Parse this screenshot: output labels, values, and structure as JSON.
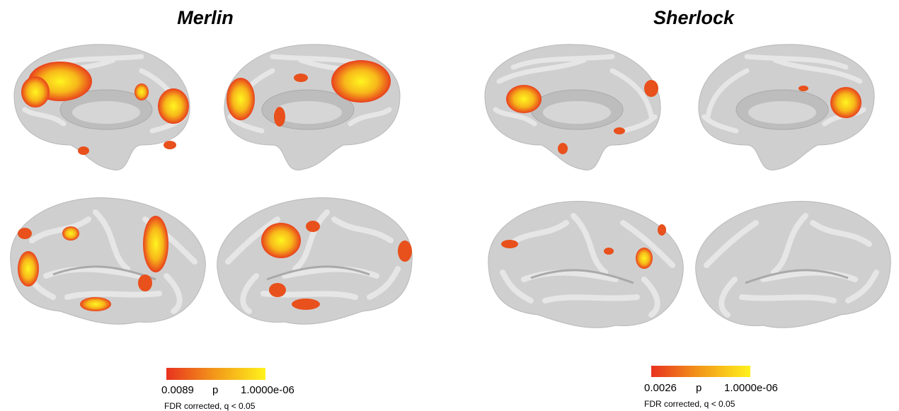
{
  "panels": [
    {
      "title": "Merlin",
      "colorbar": {
        "min_label": "0.0089",
        "mid_label": "p",
        "max_label": "1.0000e-06",
        "note": "FDR corrected, q < 0.05"
      }
    },
    {
      "title": "Sherlock",
      "colorbar": {
        "min_label": "0.0026",
        "mid_label": "p",
        "max_label": "1.0000e-06",
        "note": "FDR corrected, q < 0.05"
      }
    }
  ]
}
